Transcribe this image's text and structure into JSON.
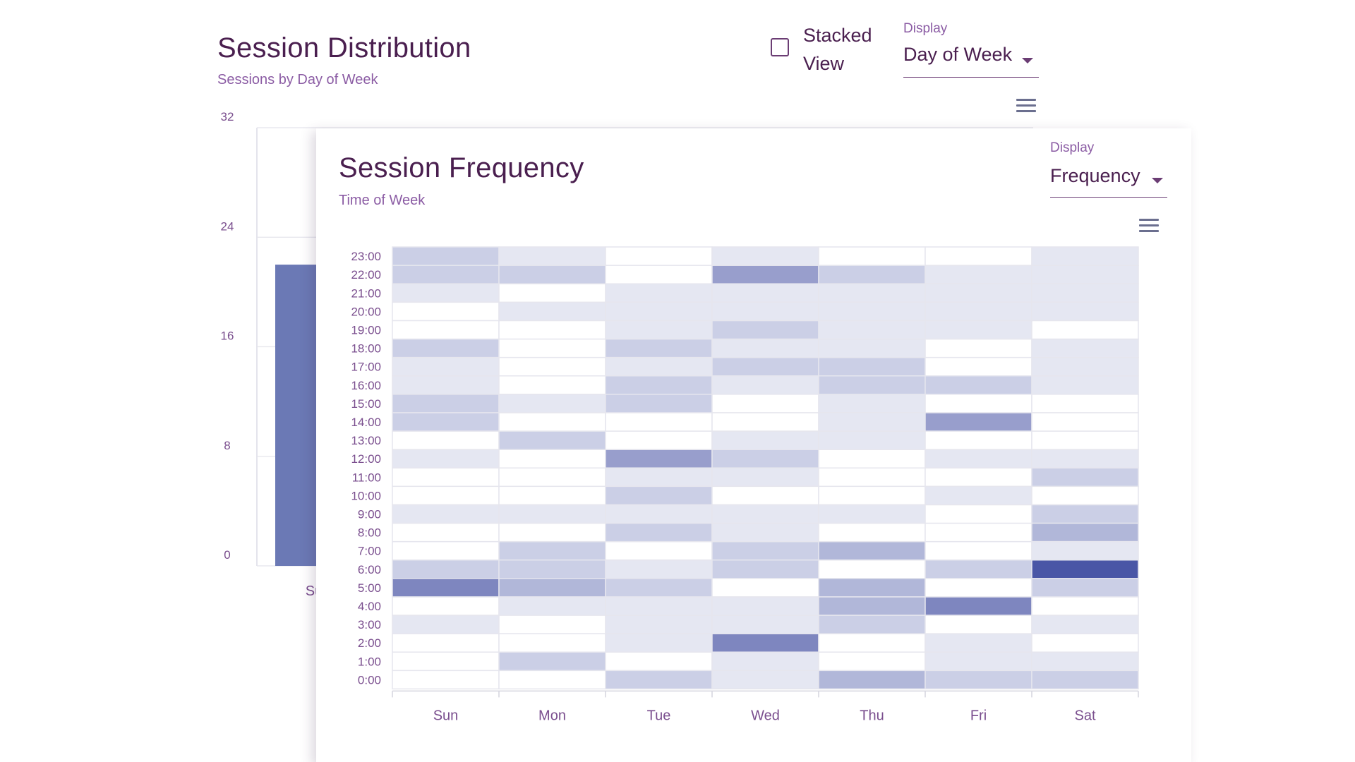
{
  "back_card": {
    "title": "Session Distribution",
    "subtitle": "Sessions by Day of Week",
    "stacked_label": "Stacked View",
    "stacked_checked": false,
    "display_label": "Display",
    "display_value": "Day of Week",
    "menu_icon": "hamburger-menu-icon"
  },
  "front_card": {
    "title": "Session Frequency",
    "subtitle": "Time of Week",
    "display_label": "Display",
    "display_value": "Frequency",
    "menu_icon": "hamburger-menu-icon"
  },
  "chart_data": [
    {
      "type": "bar",
      "title": "Session Distribution",
      "subtitle": "Sessions by Day of Week",
      "categories": [
        "Su"
      ],
      "values": [
        22
      ],
      "ylim": [
        0,
        32
      ],
      "yticks": [
        0,
        8,
        16,
        24,
        32
      ],
      "color": "#6b79b5",
      "grid": true,
      "note": "Partially occluded by the Session Frequency card"
    },
    {
      "type": "heatmap",
      "title": "Session Frequency",
      "subtitle": "Time of Week",
      "x": [
        "Sun",
        "Mon",
        "Tue",
        "Wed",
        "Thu",
        "Fri",
        "Sat"
      ],
      "y": [
        "0:00",
        "1:00",
        "2:00",
        "3:00",
        "4:00",
        "5:00",
        "6:00",
        "7:00",
        "8:00",
        "9:00",
        "10:00",
        "11:00",
        "12:00",
        "13:00",
        "14:00",
        "15:00",
        "16:00",
        "17:00",
        "18:00",
        "19:00",
        "20:00",
        "21:00",
        "22:00",
        "23:00"
      ],
      "values": [
        [
          0,
          0,
          2,
          1,
          3,
          2,
          2
        ],
        [
          0,
          2,
          0,
          1,
          0,
          1,
          1
        ],
        [
          0,
          0,
          1,
          5,
          0,
          1,
          0
        ],
        [
          1,
          0,
          1,
          1,
          2,
          0,
          1
        ],
        [
          0,
          1,
          1,
          1,
          3,
          5,
          0
        ],
        [
          5,
          3,
          2,
          0,
          3,
          0,
          2
        ],
        [
          2,
          2,
          1,
          2,
          0,
          2,
          7
        ],
        [
          0,
          2,
          0,
          2,
          3,
          0,
          1
        ],
        [
          0,
          0,
          2,
          1,
          0,
          0,
          3
        ],
        [
          1,
          1,
          1,
          1,
          1,
          0,
          2
        ],
        [
          0,
          0,
          2,
          0,
          0,
          1,
          0
        ],
        [
          0,
          0,
          1,
          1,
          0,
          0,
          2
        ],
        [
          1,
          0,
          4,
          2,
          0,
          1,
          1
        ],
        [
          0,
          2,
          0,
          1,
          1,
          0,
          0
        ],
        [
          2,
          0,
          0,
          0,
          1,
          4,
          0
        ],
        [
          2,
          1,
          2,
          0,
          1,
          0,
          0
        ],
        [
          1,
          0,
          2,
          1,
          2,
          2,
          1
        ],
        [
          1,
          0,
          1,
          2,
          2,
          0,
          1
        ],
        [
          2,
          0,
          2,
          1,
          1,
          0,
          1
        ],
        [
          0,
          0,
          1,
          2,
          1,
          1,
          0
        ],
        [
          0,
          1,
          1,
          1,
          1,
          1,
          1
        ],
        [
          1,
          0,
          1,
          1,
          1,
          1,
          1
        ],
        [
          2,
          2,
          0,
          4,
          2,
          1,
          1
        ],
        [
          2,
          1,
          0,
          1,
          0,
          0,
          1
        ]
      ],
      "value_range": [
        0,
        7
      ],
      "color_low": "#ffffff",
      "color_high": "#4a56a6"
    }
  ]
}
